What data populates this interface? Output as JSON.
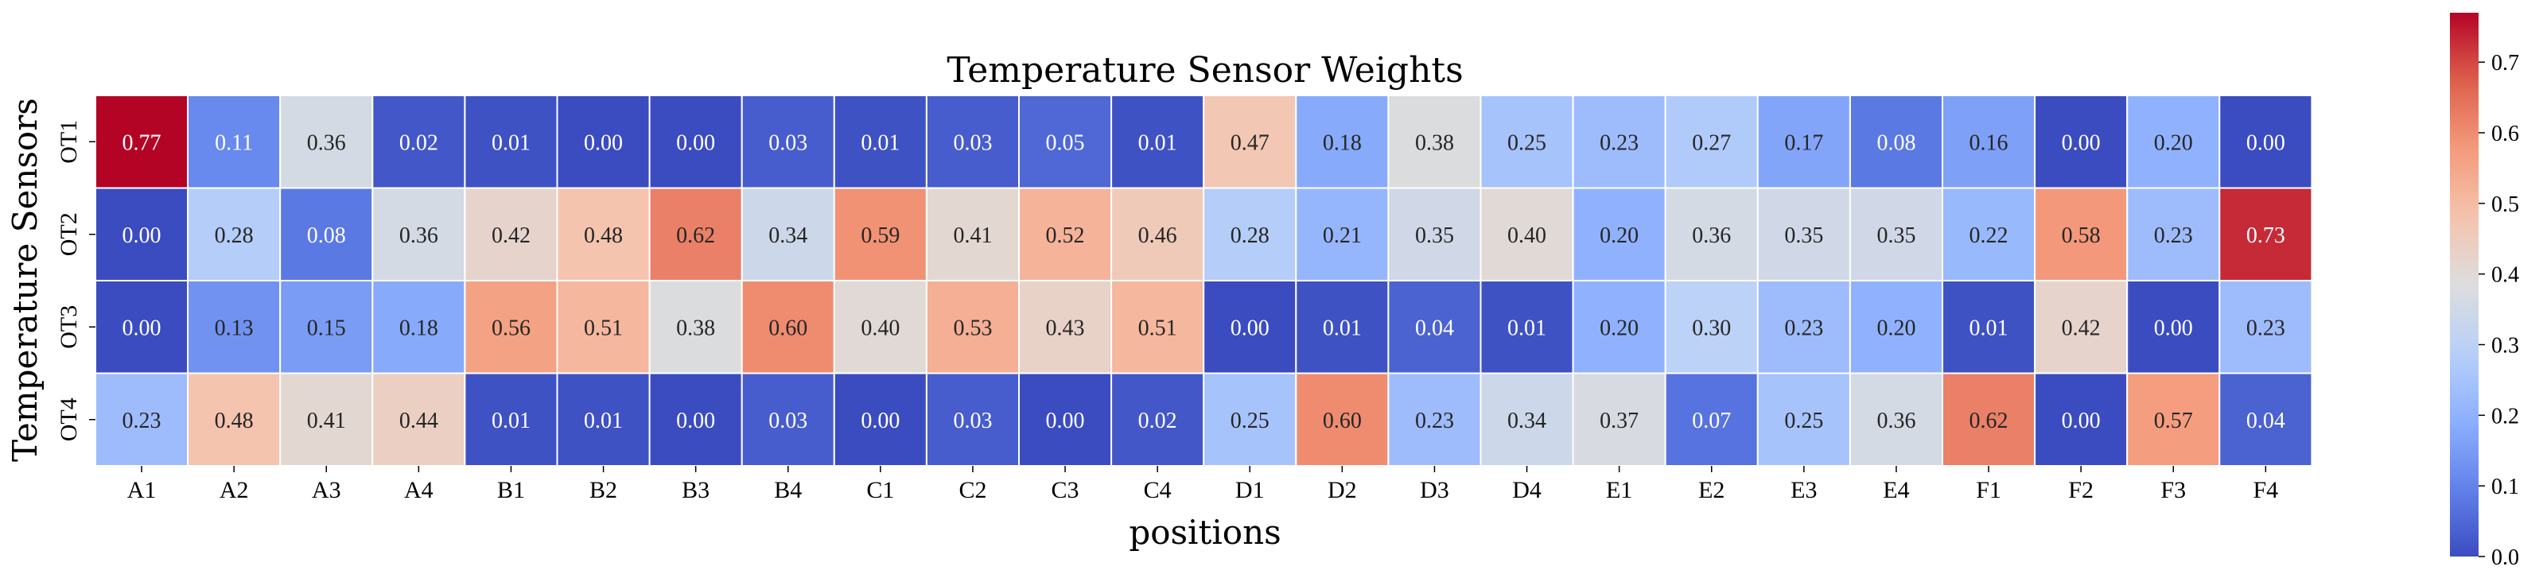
{
  "chart_data": {
    "type": "heatmap",
    "title": "Temperature Sensor Weights",
    "xlabel": "positions",
    "ylabel": "Temperature Sensors",
    "x_categories": [
      "A1",
      "A2",
      "A3",
      "A4",
      "B1",
      "B2",
      "B3",
      "B4",
      "C1",
      "C2",
      "C3",
      "C4",
      "D1",
      "D2",
      "D3",
      "D4",
      "E1",
      "E2",
      "E3",
      "E4",
      "F1",
      "F2",
      "F3",
      "F4"
    ],
    "y_categories": [
      "OT1",
      "OT2",
      "OT3",
      "OT4"
    ],
    "values": [
      [
        0.77,
        0.11,
        0.36,
        0.02,
        0.01,
        0.0,
        0.0,
        0.03,
        0.01,
        0.03,
        0.05,
        0.01,
        0.47,
        0.18,
        0.38,
        0.25,
        0.23,
        0.27,
        0.17,
        0.08,
        0.16,
        0.0,
        0.2,
        0.0
      ],
      [
        0.0,
        0.28,
        0.08,
        0.36,
        0.42,
        0.48,
        0.62,
        0.34,
        0.59,
        0.41,
        0.52,
        0.46,
        0.28,
        0.21,
        0.35,
        0.4,
        0.2,
        0.36,
        0.35,
        0.35,
        0.22,
        0.58,
        0.23,
        0.73
      ],
      [
        0.0,
        0.13,
        0.15,
        0.18,
        0.56,
        0.51,
        0.38,
        0.6,
        0.4,
        0.53,
        0.43,
        0.51,
        0.0,
        0.01,
        0.04,
        0.01,
        0.2,
        0.3,
        0.23,
        0.2,
        0.01,
        0.42,
        0.0,
        0.23
      ],
      [
        0.23,
        0.48,
        0.41,
        0.44,
        0.01,
        0.01,
        0.0,
        0.03,
        0.0,
        0.03,
        0.0,
        0.02,
        0.25,
        0.6,
        0.23,
        0.34,
        0.37,
        0.07,
        0.25,
        0.36,
        0.62,
        0.0,
        0.57,
        0.04
      ]
    ],
    "colormap": "coolwarm",
    "vmin": 0.0,
    "vmax": 0.77,
    "colorbar_ticks": [
      0.0,
      0.1,
      0.2,
      0.3,
      0.4,
      0.5,
      0.6,
      0.7
    ]
  }
}
